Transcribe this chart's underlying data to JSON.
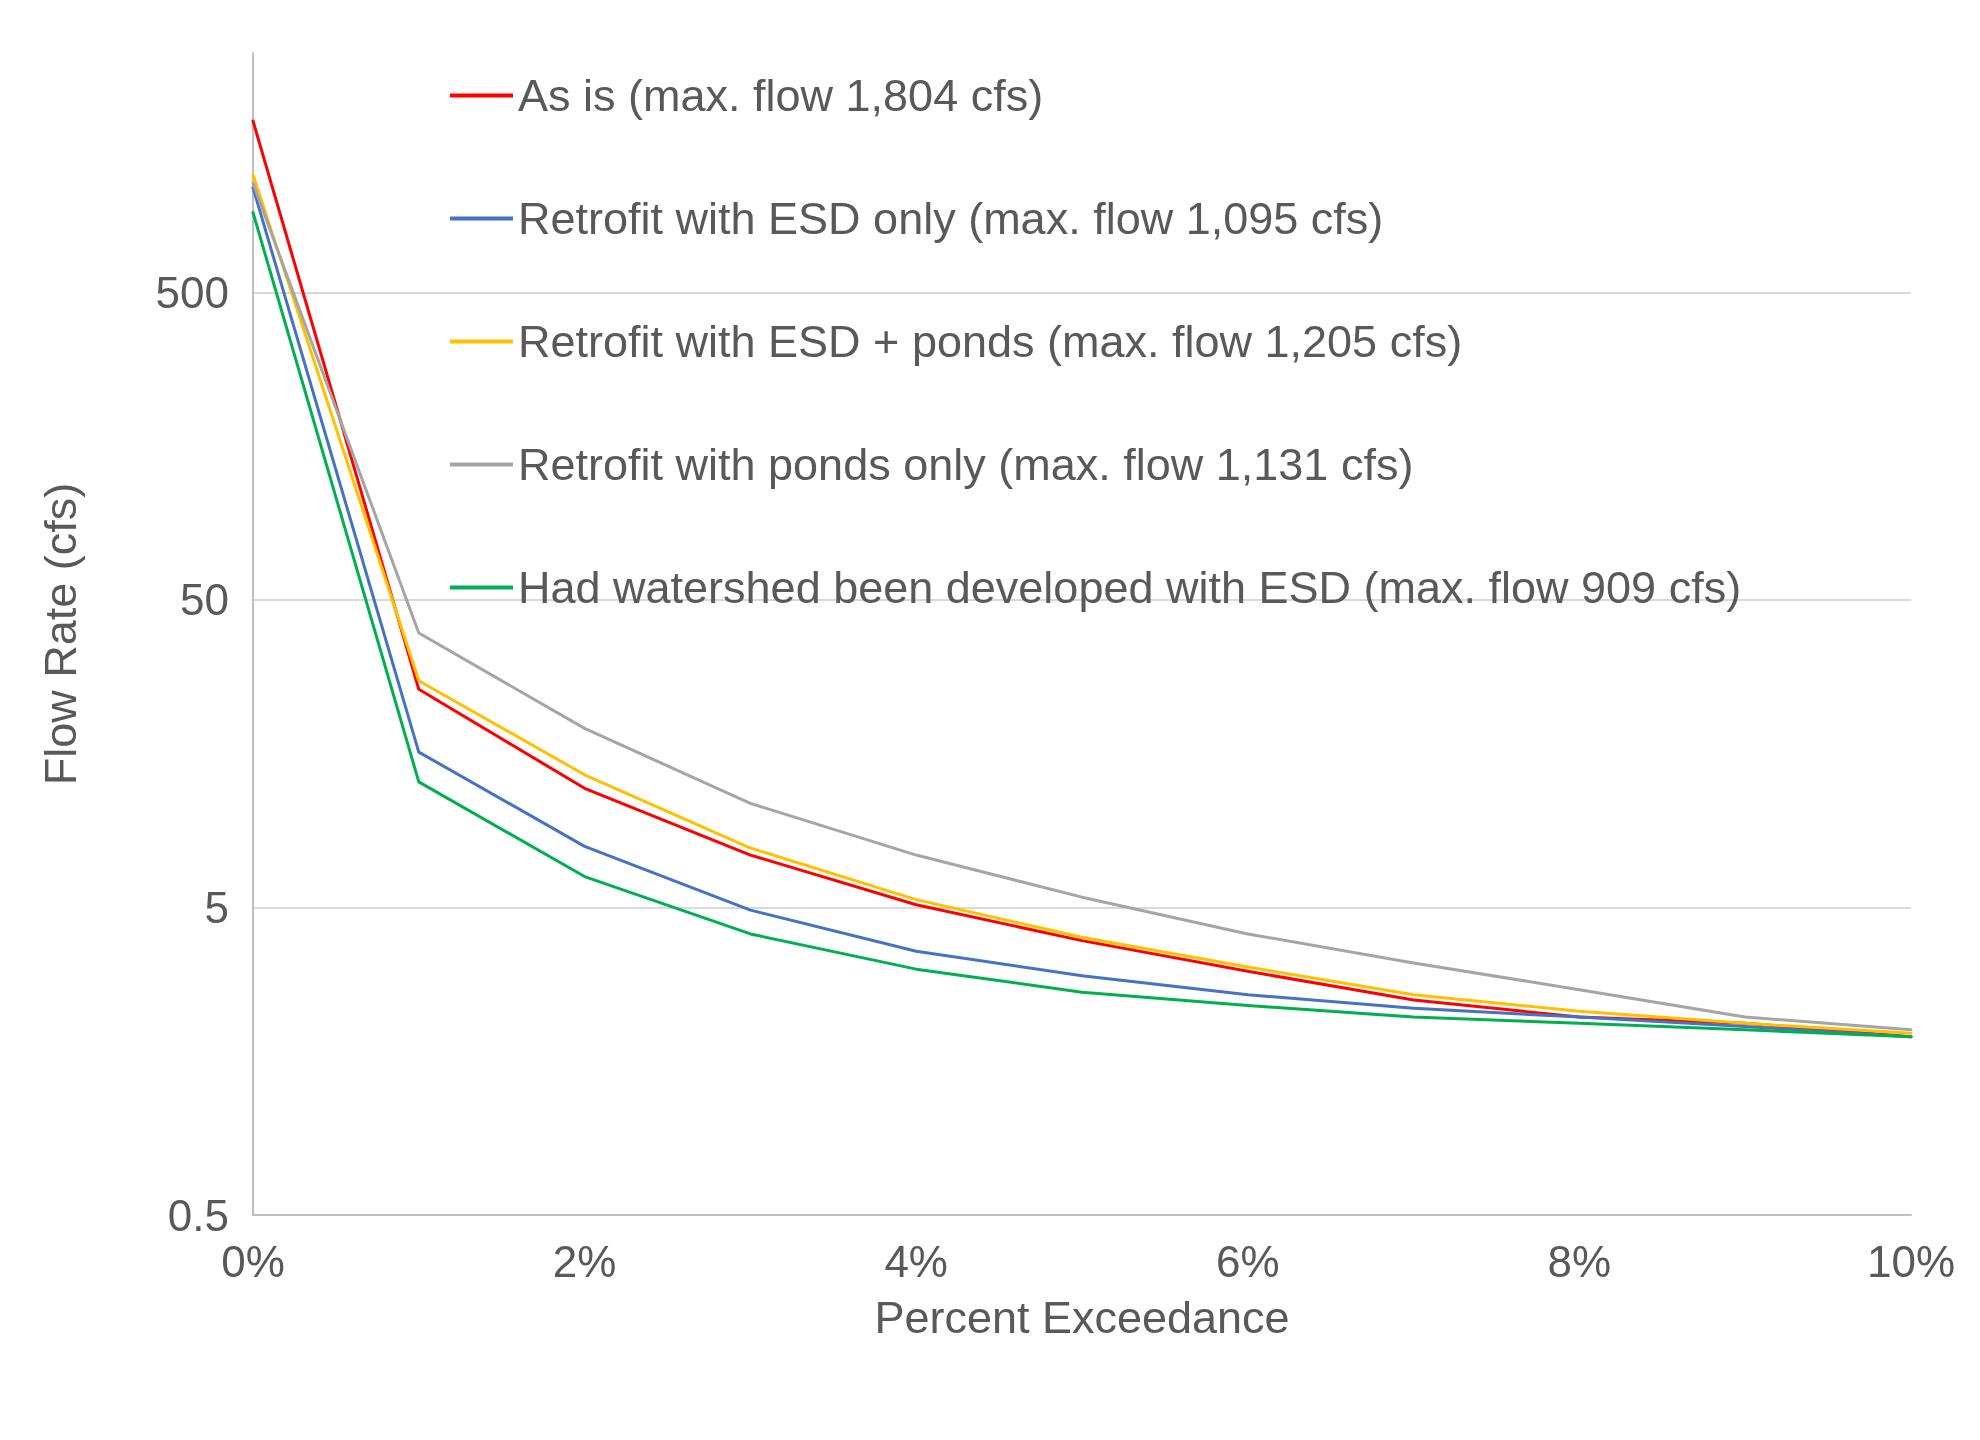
{
  "chart_data": {
    "type": "line",
    "xlabel": "Percent Exceedance",
    "ylabel": "Flow Rate (cfs)",
    "x": [
      0,
      1,
      2,
      3,
      4,
      5,
      6,
      7,
      8,
      9,
      10
    ],
    "series": [
      {
        "name": "As is (max. flow 1,804 cfs)",
        "color": "#ff0000",
        "values": [
          1804,
          25.6,
          12.2,
          7.4,
          5.1,
          3.9,
          3.1,
          2.5,
          2.2,
          2.1,
          1.9
        ]
      },
      {
        "name": "Retrofit with ESD only (max. flow 1,095 cfs)",
        "color": "#4472c4",
        "values": [
          1095,
          16,
          7.9,
          4.9,
          3.6,
          3.0,
          2.6,
          2.35,
          2.2,
          2.05,
          1.9
        ]
      },
      {
        "name": "Retrofit with ESD + ponds (max. flow 1,205 cfs)",
        "color": "#ffc000",
        "values": [
          1205,
          27.3,
          13.5,
          7.8,
          5.3,
          4.0,
          3.2,
          2.6,
          2.3,
          2.1,
          1.95
        ]
      },
      {
        "name": "Retrofit with ponds only (max. flow 1,131 cfs)",
        "color": "#a5a5a5",
        "values": [
          1131,
          39,
          19.1,
          10.9,
          7.4,
          5.4,
          4.1,
          3.3,
          2.7,
          2.2,
          2.0
        ]
      },
      {
        "name": "Had watershed been developed with ESD (max. flow 909 cfs)",
        "color": "#00b050",
        "values": [
          909,
          12.8,
          6.3,
          4.1,
          3.15,
          2.65,
          2.4,
          2.2,
          2.1,
          2.0,
          1.9
        ]
      }
    ],
    "xlim": [
      0,
      10
    ],
    "xticks": [
      {
        "value": 0,
        "label": "0%"
      },
      {
        "value": 2,
        "label": "2%"
      },
      {
        "value": 4,
        "label": "4%"
      },
      {
        "value": 6,
        "label": "6%"
      },
      {
        "value": 8,
        "label": "8%"
      },
      {
        "value": 10,
        "label": "10%"
      }
    ],
    "ylim": [
      0.5,
      3000
    ],
    "yticks": [
      0.5,
      5,
      50,
      500
    ],
    "log": "y",
    "grid": "y",
    "legend": "top",
    "marker": "none",
    "line_style": "solid"
  }
}
